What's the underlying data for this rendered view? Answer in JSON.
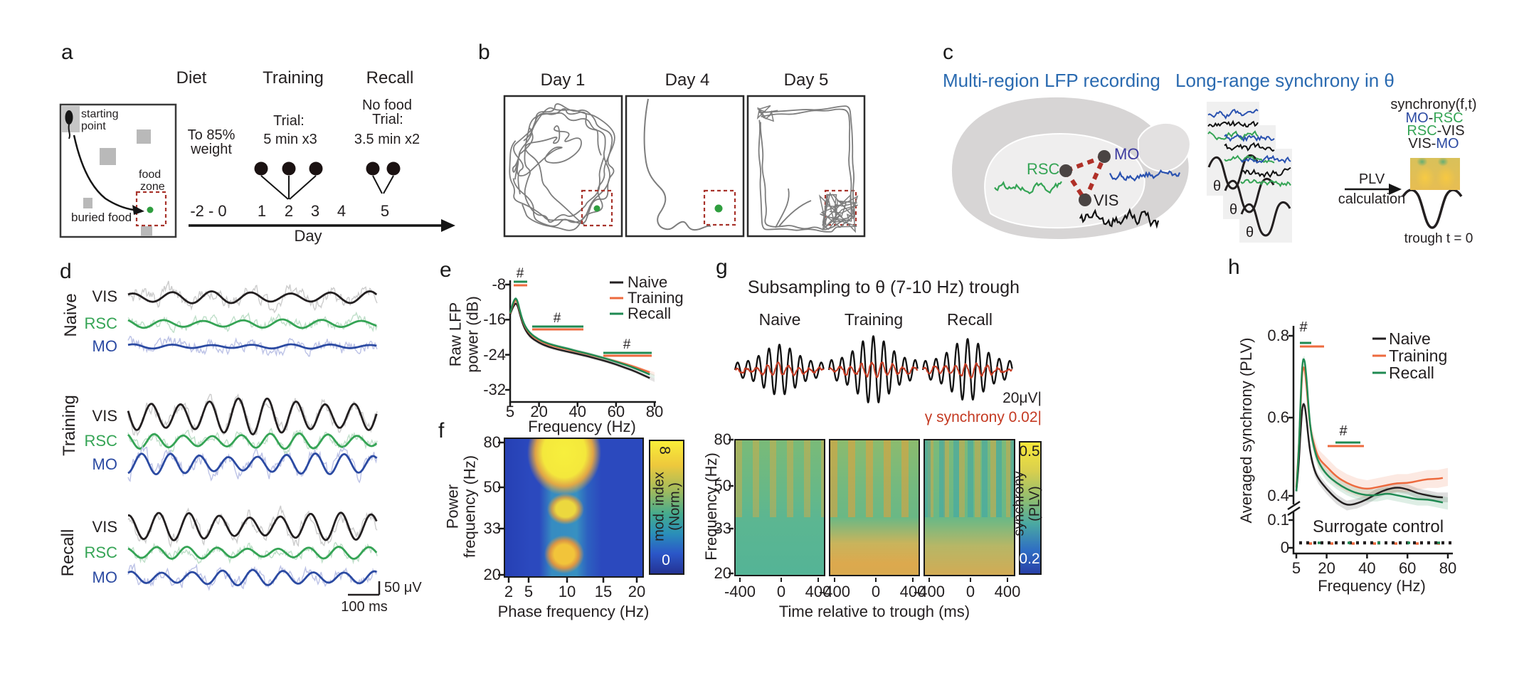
{
  "colors": {
    "naive": "#231f20",
    "training": "#ed6a3e",
    "recall": "#1f8a52",
    "vis": "#231f20",
    "rsc": "#35a455",
    "mo": "#2b4aa2",
    "accent_blue": "#2a6ab0",
    "red_dash": "#a8332b",
    "gamma_red": "#c43a22",
    "green_dot": "#2f9e3f",
    "trajectory_gray": "#7d7d7d"
  },
  "a": {
    "label": "a",
    "maze": {
      "start_1": "starting",
      "start_2": "point",
      "food_1": "food",
      "food_2": "zone",
      "buried": "buried food"
    },
    "diet_title": "Diet",
    "diet_1": "To 85%",
    "diet_2": "weight",
    "training_title": "Training",
    "training_1": "Trial:",
    "training_2": "5 min x3",
    "recall_title": "Recall",
    "recall_0": "No food",
    "recall_1": "Trial:",
    "recall_2": "3.5 min x2",
    "ticks": [
      "-2 - 0",
      "1",
      "2",
      "3",
      "4",
      "5"
    ],
    "axis": "Day"
  },
  "b": {
    "label": "b",
    "days": [
      "Day 1",
      "Day 4",
      "Day 5"
    ]
  },
  "c": {
    "label": "c",
    "title_left": "Multi-region LFP recording",
    "title_right": "Long-range synchrony in θ",
    "rsc": "RSC",
    "mo": "MO",
    "vis": "VIS",
    "theta": "θ",
    "plv_1": "PLV",
    "plv_2": "calculation",
    "sync_title": "synchrony(f,t)",
    "pairs": [
      {
        "a": "MO",
        "sep": "-",
        "b": "RSC"
      },
      {
        "a": "RSC",
        "sep": "-",
        "b": "VIS"
      },
      {
        "a": "VIS",
        "sep": "-",
        "b": "MO"
      }
    ],
    "trough": "trough t = 0"
  },
  "d": {
    "label": "d",
    "rows": [
      "Naive",
      "Training",
      "Recall"
    ],
    "channels": [
      "VIS",
      "RSC",
      "MO"
    ],
    "scale_v": "50 μV",
    "scale_t": "100 ms"
  },
  "e": {
    "label": "e",
    "ylabel_1": "Raw LFP",
    "ylabel_2": "power (dB)",
    "xlabel": "Frequency (Hz)",
    "sig": "#"
  },
  "f": {
    "label": "f",
    "ylabel_1": "Power",
    "ylabel_2": "frequency (Hz)",
    "xlabel": "Phase frequency (Hz)",
    "cbar_top": "8",
    "cbar_bottom": "0",
    "cbar_label_1": "mod. index",
    "cbar_label_2": "(Norm.)"
  },
  "g": {
    "label": "g",
    "title": "Subsampling to θ (7-10 Hz) trough",
    "cols": [
      "Naive",
      "Training",
      "Recall"
    ],
    "scale_v": "20μV|",
    "scale_g": "γ synchrony 0.02|",
    "ylabel": "Frequency (Hz)",
    "xlabel": "Time relative to trough (ms)",
    "cbar_top": "0.5",
    "cbar_bottom": "0.2",
    "cbar_label_1": "synchrony",
    "cbar_label_2": "(PLV)"
  },
  "h": {
    "label": "h",
    "ylabel": "Averaged synchrony (PLV)",
    "xlabel": "Frequency (Hz)",
    "legend": [
      "Naive",
      "Training",
      "Recall"
    ],
    "surrogate": "Surrogate control",
    "sig": "#"
  },
  "chart_data": [
    {
      "id": "raw_lfp_power",
      "type": "line",
      "title": "",
      "xlabel": "Frequency (Hz)",
      "ylabel": "Raw LFP power (dB)",
      "xlim": [
        5,
        80
      ],
      "ylim": [
        -32,
        -8
      ],
      "xticks": [
        5,
        20,
        40,
        60,
        80
      ],
      "yticks": [
        -8,
        -16,
        -24,
        -32
      ],
      "x": [
        5,
        6,
        7,
        8,
        9,
        10,
        12,
        15,
        20,
        25,
        30,
        35,
        40,
        45,
        50,
        55,
        60,
        65,
        70,
        75,
        80
      ],
      "series": [
        {
          "name": "Naive",
          "values": [
            -14.8,
            -13.6,
            -12.7,
            -12.2,
            -12.9,
            -14.6,
            -17.6,
            -19.8,
            -21.3,
            -22.2,
            -22.8,
            -23.3,
            -23.8,
            -24.3,
            -24.9,
            -25.5,
            -26.2,
            -27.0,
            -27.8,
            -28.8,
            -29.8
          ]
        },
        {
          "name": "Training",
          "values": [
            -14.6,
            -13.1,
            -12.0,
            -11.4,
            -12.3,
            -14.1,
            -17.1,
            -19.2,
            -20.8,
            -21.7,
            -22.3,
            -22.8,
            -23.3,
            -23.8,
            -24.4,
            -24.9,
            -25.5,
            -26.1,
            -26.8,
            -27.6,
            -28.4
          ]
        },
        {
          "name": "Recall",
          "values": [
            -14.5,
            -12.9,
            -11.6,
            -11.0,
            -12.0,
            -13.9,
            -16.9,
            -19.0,
            -20.6,
            -21.5,
            -22.1,
            -22.6,
            -23.2,
            -23.7,
            -24.3,
            -24.9,
            -25.6,
            -26.3,
            -27.1,
            -28.0,
            -29.0
          ]
        }
      ],
      "annotations": "# significance bars (Training, Recall) near 7-10 Hz, 17-43 Hz and 54-79 Hz",
      "legend_position": "upper right",
      "grid": false
    },
    {
      "id": "phase_amplitude_coupling",
      "type": "heatmap",
      "xlabel": "Phase frequency (Hz)",
      "ylabel": "Power frequency (Hz)",
      "xticks": [
        2,
        5,
        10,
        15,
        20
      ],
      "yticks": [
        80,
        50,
        33,
        20
      ],
      "colorbar": {
        "label": "mod. index (Norm.)",
        "min": 0,
        "max": 8
      },
      "description": "Strong modulation of 20-80 Hz power by 7-10 Hz theta phase; hotspots at ~55-80 Hz, ~38-44 Hz and ~21-28 Hz power frequency."
    },
    {
      "id": "trough_locked_synchrony",
      "type": "heatmap",
      "conditions": [
        "Naive",
        "Training",
        "Recall"
      ],
      "xlabel": "Time relative to trough (ms)",
      "ylabel": "Frequency (Hz)",
      "xticks": [
        -400,
        0,
        400
      ],
      "yticks": [
        80,
        50,
        33,
        20
      ],
      "colorbar": {
        "label": "synchrony (PLV)",
        "min": 0.2,
        "max": 0.5
      },
      "description": "Theta-phase modulated gamma synchrony stripes around the theta trough; Training and Recall show elevated 20-33 Hz synchrony."
    },
    {
      "id": "theta_trough_traces",
      "type": "line",
      "conditions": [
        "Naive",
        "Training",
        "Recall"
      ],
      "scale": "20 μV (theta LFP, black); 0.02 (gamma synchrony, red)",
      "description": "Theta-filtered LFP (black) with overlaid gamma synchrony (red) around the theta trough."
    },
    {
      "id": "avg_synchrony",
      "type": "line",
      "xlabel": "Frequency (Hz)",
      "ylabel": "Averaged synchrony (PLV)",
      "xlim": [
        5,
        80
      ],
      "ylim": [
        0,
        0.8
      ],
      "xticks": [
        5,
        20,
        40,
        60,
        80
      ],
      "yticks": [
        0.8,
        0.6,
        0.4,
        0.1,
        0
      ],
      "x": [
        5,
        6,
        7,
        8,
        9,
        10,
        11,
        12,
        14,
        16,
        20,
        25,
        30,
        35,
        40,
        45,
        50,
        55,
        60,
        65,
        70,
        75,
        80
      ],
      "series": [
        {
          "name": "Naive",
          "values": [
            0.42,
            0.47,
            0.56,
            0.63,
            0.635,
            0.6,
            0.55,
            0.51,
            0.47,
            0.45,
            0.425,
            0.4,
            0.385,
            0.39,
            0.4,
            0.415,
            0.425,
            0.43,
            0.425,
            0.415,
            0.41,
            0.405,
            0.405
          ]
        },
        {
          "name": "Training",
          "values": [
            0.43,
            0.5,
            0.62,
            0.72,
            0.725,
            0.68,
            0.62,
            0.57,
            0.53,
            0.5,
            0.48,
            0.455,
            0.44,
            0.43,
            0.425,
            0.43,
            0.435,
            0.44,
            0.44,
            0.445,
            0.45,
            0.45,
            0.455
          ]
        },
        {
          "name": "Recall",
          "values": [
            0.42,
            0.49,
            0.63,
            0.74,
            0.745,
            0.7,
            0.63,
            0.57,
            0.52,
            0.49,
            0.46,
            0.44,
            0.425,
            0.415,
            0.41,
            0.41,
            0.415,
            0.41,
            0.405,
            0.4,
            0.4,
            0.395,
            0.39
          ]
        }
      ],
      "surrogate_control": 0.02,
      "annotations": "# significance bars (Training, Recall) near 7-10 Hz and 17-38 Hz; axis break between 0.1 and 0.4",
      "legend_position": "upper right",
      "grid": false
    }
  ]
}
